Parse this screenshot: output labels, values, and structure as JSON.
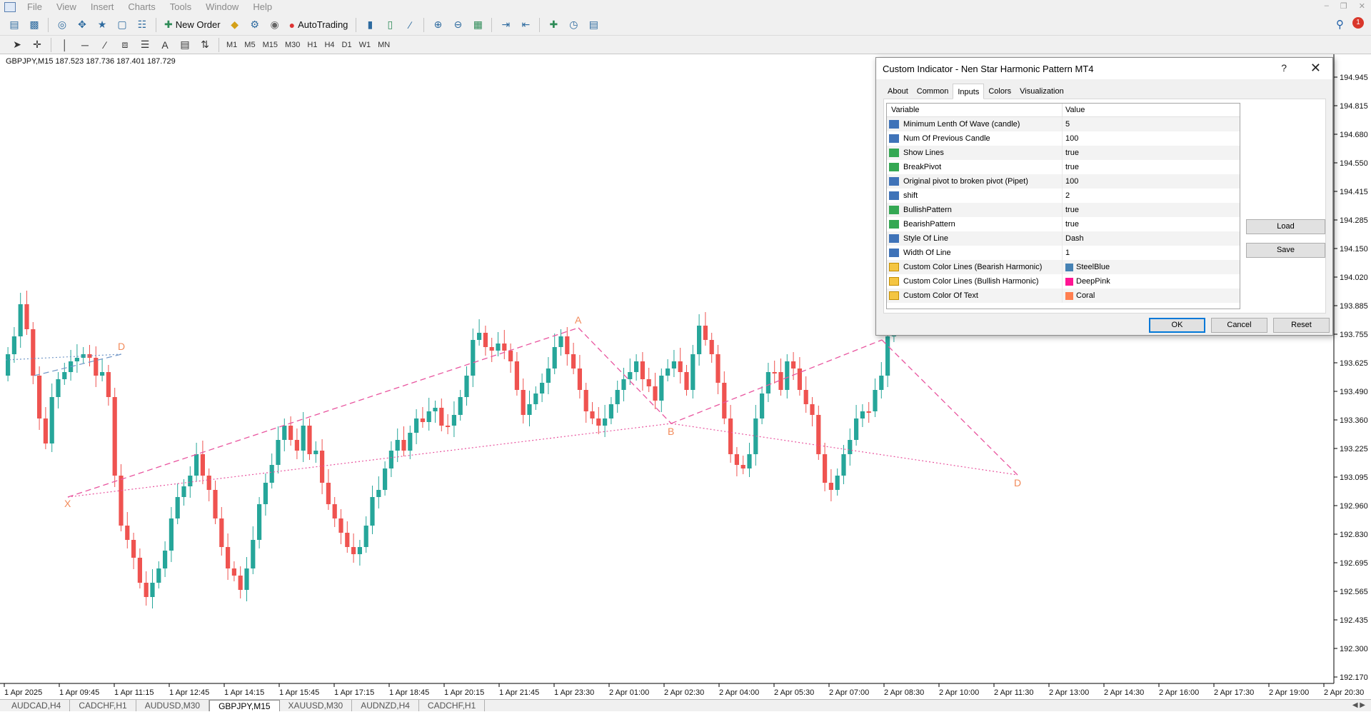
{
  "menubar": {
    "items": [
      "File",
      "View",
      "Insert",
      "Charts",
      "Tools",
      "Window",
      "Help"
    ]
  },
  "toolbar": {
    "new_order_label": "New Order",
    "autotrading_label": "AutoTrading",
    "timeframes": [
      "M1",
      "M5",
      "M15",
      "M30",
      "H1",
      "H4",
      "D1",
      "W1",
      "MN"
    ]
  },
  "chart": {
    "header": "GBPJPY,M15  187.523 187.736 187.401 187.729",
    "price_axis": [
      "194.945",
      "194.815",
      "194.680",
      "194.550",
      "194.415",
      "194.285",
      "194.150",
      "194.020",
      "193.885",
      "193.755",
      "193.625",
      "193.490",
      "193.360",
      "193.225",
      "193.095",
      "192.960",
      "192.830",
      "192.695",
      "192.565",
      "192.435",
      "192.300",
      "192.170"
    ],
    "time_axis": [
      "1 Apr 2025",
      "1 Apr 09:45",
      "1 Apr 11:15",
      "1 Apr 12:45",
      "1 Apr 14:15",
      "1 Apr 15:45",
      "1 Apr 17:15",
      "1 Apr 18:45",
      "1 Apr 20:15",
      "1 Apr 21:45",
      "1 Apr 23:30",
      "2 Apr 01:00",
      "2 Apr 02:30",
      "2 Apr 04:00",
      "2 Apr 05:30",
      "2 Apr 07:00",
      "2 Apr 08:30",
      "2 Apr 10:00",
      "2 Apr 11:30",
      "2 Apr 13:00",
      "2 Apr 14:30",
      "2 Apr 16:00",
      "2 Apr 17:30",
      "2 Apr 19:00",
      "2 Apr 20:30"
    ],
    "pattern_labels": {
      "x": "X",
      "a": "A",
      "b": "B",
      "d1": "D",
      "d2": "D"
    },
    "colors": {
      "bull": "#26a69a",
      "bear": "#ef5350",
      "pattern_bull": "#e9559f",
      "pattern_bear": "#6f95c6",
      "label": "#f28a5a"
    }
  },
  "dialog": {
    "title": "Custom Indicator - Nen Star Harmonic Pattern MT4",
    "help": "?",
    "tabs": [
      "About",
      "Common",
      "Inputs",
      "Colors",
      "Visualization"
    ],
    "active_tab": "Inputs",
    "columns": {
      "variable": "Variable",
      "value": "Value"
    },
    "params": [
      {
        "name": "Minimum Lenth Of Wave (candle)",
        "value": "5",
        "type": "int"
      },
      {
        "name": "Num Of Previous Candle",
        "value": "100",
        "type": "int"
      },
      {
        "name": "Show Lines",
        "value": "true",
        "type": "bool"
      },
      {
        "name": "BreakPivot",
        "value": "true",
        "type": "bool"
      },
      {
        "name": "Original pivot to broken pivot (Pipet)",
        "value": "100",
        "type": "int"
      },
      {
        "name": "shift",
        "value": "2",
        "type": "int"
      },
      {
        "name": "BullishPattern",
        "value": "true",
        "type": "bool"
      },
      {
        "name": "BearishPattern",
        "value": "true",
        "type": "bool"
      },
      {
        "name": "Style Of Line",
        "value": "Dash",
        "type": "int"
      },
      {
        "name": "Width Of Line",
        "value": "1",
        "type": "int"
      },
      {
        "name": "Custom Color Lines (Bearish Harmonic)",
        "value": "SteelBlue",
        "type": "color",
        "swatch": "#4682b4"
      },
      {
        "name": "Custom Color Lines (Bullish Harmonic)",
        "value": "DeepPink",
        "type": "color",
        "swatch": "#ff1493"
      },
      {
        "name": "Custom Color Of Text",
        "value": "Coral",
        "type": "color",
        "swatch": "#ff7f50"
      }
    ],
    "buttons": {
      "load": "Load",
      "save": "Save",
      "ok": "OK",
      "cancel": "Cancel",
      "reset": "Reset"
    }
  },
  "bottom_tabs": [
    "AUDCAD,H4",
    "CADCHF,H1",
    "AUDUSD,M30",
    "GBPJPY,M15",
    "XAUUSD,M30",
    "AUDNZD,H4",
    "CADCHF,H1"
  ],
  "active_bottom_tab": "GBPJPY,M15"
}
